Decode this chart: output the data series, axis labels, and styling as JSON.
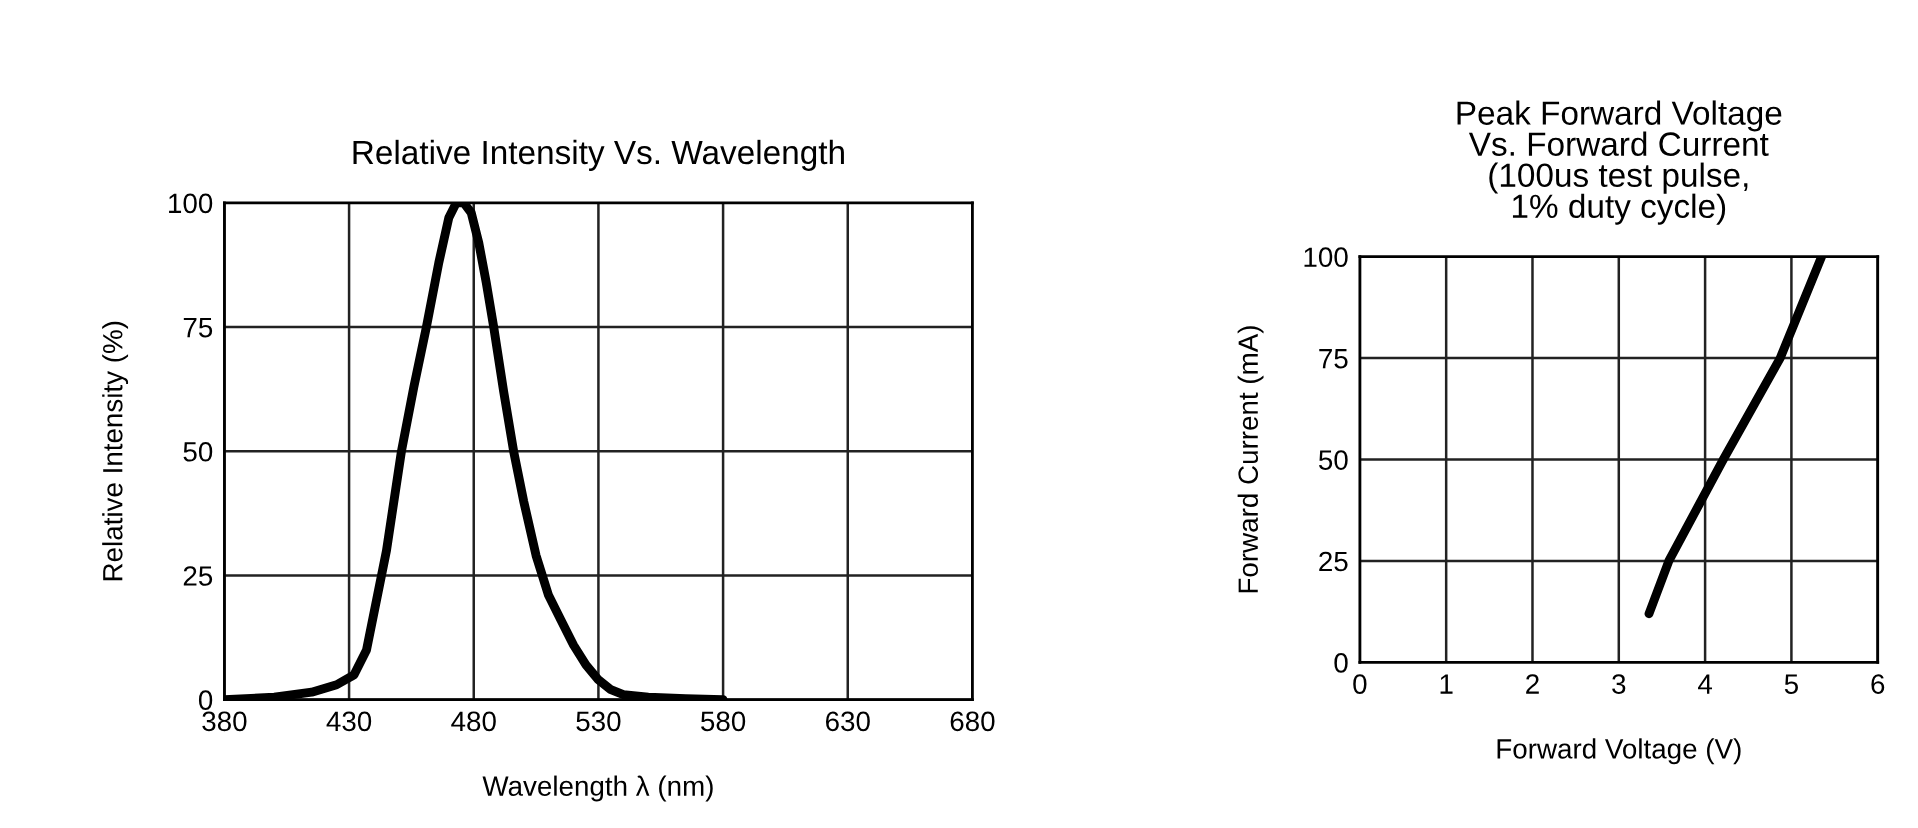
{
  "chart_data": [
    {
      "type": "line",
      "title": "Relative Intensity Vs. Wavelength",
      "xlabel": "Wavelength λ (nm)",
      "ylabel": "Relative Intensity (%)",
      "xlim": [
        380,
        680
      ],
      "ylim": [
        0,
        100
      ],
      "xticks": [
        380,
        430,
        480,
        530,
        580,
        630,
        680
      ],
      "yticks": [
        0,
        25,
        50,
        75,
        100
      ],
      "grid": true,
      "line_style": "solid",
      "series": [
        {
          "color": "#000000",
          "x": [
            380,
            400,
            415,
            425,
            432,
            437,
            445,
            451,
            456,
            461,
            466,
            470,
            473,
            476,
            479,
            482,
            485,
            488,
            492,
            496,
            500,
            505,
            510,
            515,
            520,
            525,
            530,
            535,
            540,
            550,
            565,
            580
          ],
          "values": [
            0,
            0.5,
            1.5,
            3,
            5,
            10,
            30,
            50,
            63,
            75,
            88,
            97,
            100,
            100,
            98,
            92,
            84,
            75,
            62,
            50,
            40,
            29,
            21,
            16,
            11,
            7,
            4,
            2,
            1,
            0.5,
            0.2,
            0
          ]
        }
      ]
    },
    {
      "type": "line",
      "title": "Peak Forward Voltage\nVs. Forward Current\n(100us test pulse,\n1% duty cycle)",
      "xlabel": "Forward Voltage (V)",
      "ylabel": "Forward Current (mA)",
      "xlim": [
        0,
        6
      ],
      "ylim": [
        0,
        100
      ],
      "xticks": [
        0,
        1,
        2,
        3,
        4,
        5,
        6
      ],
      "yticks": [
        0,
        25,
        50,
        75,
        100
      ],
      "grid": true,
      "line_style": "solid",
      "series": [
        {
          "color": "#000000",
          "x": [
            3.35,
            3.58,
            4.21,
            4.87,
            5.35
          ],
          "values": [
            12,
            25,
            50,
            75,
            100
          ]
        }
      ]
    }
  ]
}
